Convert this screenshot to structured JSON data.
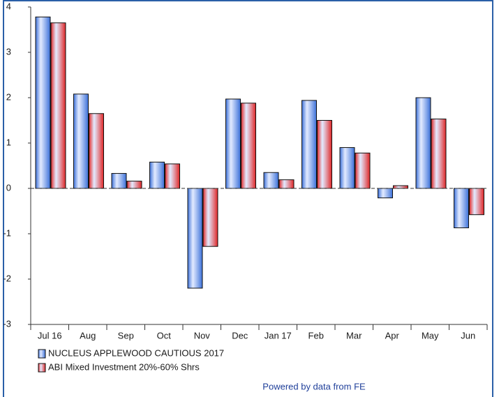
{
  "chart_data": {
    "type": "bar",
    "categories": [
      "Jul 16",
      "Aug",
      "Sep",
      "Oct",
      "Nov",
      "Dec",
      "Jan 17",
      "Feb",
      "Mar",
      "Apr",
      "May",
      "Jun"
    ],
    "series": [
      {
        "name": "NUCLEUS APPLEWOOD CAUTIOUS 2017",
        "color": "#3a6fd8",
        "values": [
          3.78,
          2.08,
          0.33,
          0.58,
          -2.2,
          1.97,
          0.35,
          1.94,
          0.9,
          -0.21,
          2.0,
          -0.87
        ]
      },
      {
        "name": "ABI Mixed Investment 20%-60% Shrs",
        "color": "#e02424",
        "values": [
          3.65,
          1.65,
          0.16,
          0.54,
          -1.28,
          1.88,
          0.19,
          1.5,
          0.78,
          0.06,
          1.53,
          -0.58
        ]
      }
    ],
    "ylim": [
      -3,
      4
    ],
    "yticks": [
      -3,
      -2,
      -1,
      0,
      1,
      2,
      3,
      4
    ],
    "legend": "bottom-left",
    "footer": "Powered by data from FE"
  }
}
